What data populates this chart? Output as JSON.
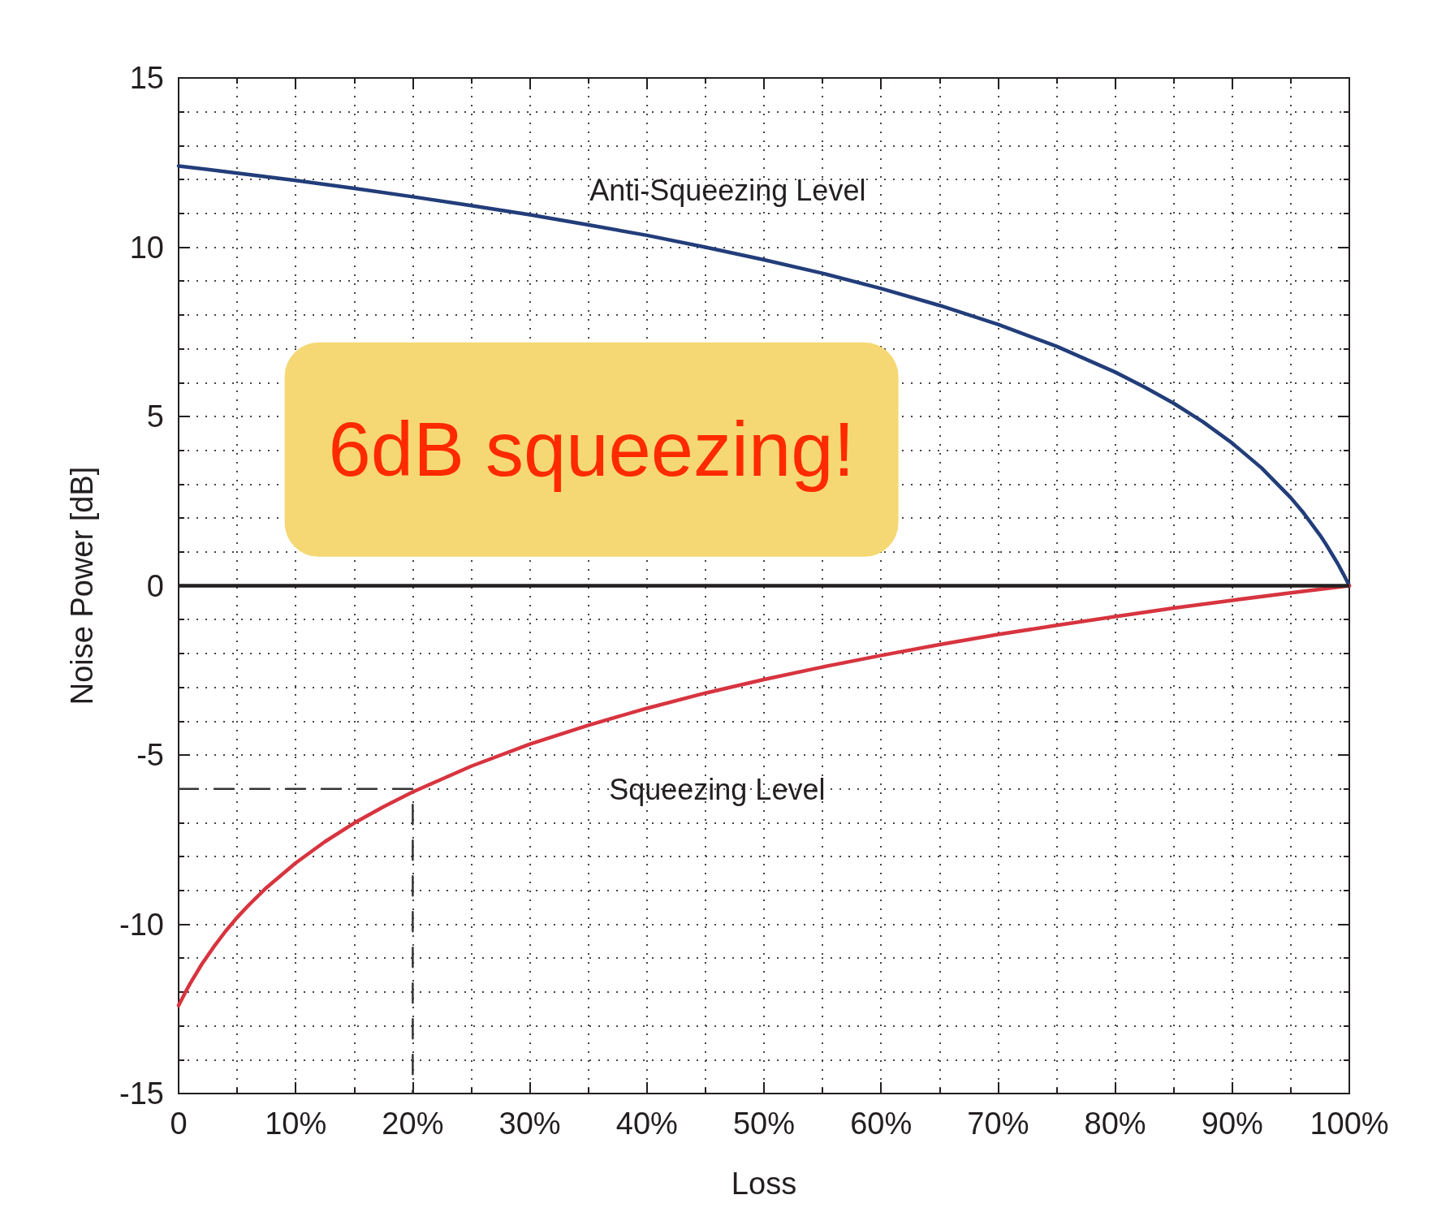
{
  "chart_data": {
    "type": "line",
    "xlabel": "Loss",
    "ylabel": "Noise Power [dB]",
    "annotations": [
      "6dB squeezing!"
    ],
    "xlim": [
      0,
      100
    ],
    "xticks": [
      0,
      {
        "value": 5,
        "label": null
      },
      {
        "value": 10,
        "label": "10%"
      },
      {
        "value": 15,
        "label": null
      },
      {
        "value": 20,
        "label": "20%"
      },
      {
        "value": 25,
        "label": null
      },
      {
        "value": 30,
        "label": "30%"
      },
      {
        "value": 35,
        "label": null
      },
      {
        "value": 40,
        "label": "40%"
      },
      {
        "value": 45,
        "label": null
      },
      {
        "value": 50,
        "label": "50%"
      },
      {
        "value": 55,
        "label": null
      },
      {
        "value": 60,
        "label": "60%"
      },
      {
        "value": 65,
        "label": null
      },
      {
        "value": 70,
        "label": "70%"
      },
      {
        "value": 75,
        "label": null
      },
      {
        "value": 80,
        "label": "80%"
      },
      {
        "value": 85,
        "label": null
      },
      {
        "value": 90,
        "label": "90%"
      },
      {
        "value": 95,
        "label": null
      },
      {
        "value": 100,
        "label": "100%"
      }
    ],
    "ylim": [
      -15,
      15
    ],
    "yticks": [
      -15,
      {
        "value": -14,
        "label": null
      },
      {
        "value": -13,
        "label": null
      },
      {
        "value": -12,
        "label": null
      },
      {
        "value": -11,
        "label": null
      },
      -10,
      {
        "value": -9,
        "label": null
      },
      {
        "value": -8,
        "label": null
      },
      {
        "value": -7,
        "label": null
      },
      {
        "value": -6,
        "label": null
      },
      -5,
      {
        "value": -4,
        "label": null
      },
      {
        "value": -3,
        "label": null
      },
      {
        "value": -2,
        "label": null
      },
      {
        "value": -1,
        "label": null
      },
      0,
      {
        "value": 1,
        "label": null
      },
      {
        "value": 2,
        "label": null
      },
      {
        "value": 3,
        "label": null
      },
      {
        "value": 4,
        "label": null
      },
      5,
      {
        "value": 6,
        "label": null
      },
      {
        "value": 7,
        "label": null
      },
      {
        "value": 8,
        "label": null
      },
      {
        "value": 9,
        "label": null
      },
      10,
      {
        "value": 11,
        "label": null
      },
      {
        "value": 12,
        "label": null
      },
      {
        "value": 13,
        "label": null
      },
      {
        "value": 14,
        "label": null
      },
      15
    ],
    "grid": true,
    "marker": "none",
    "line_style": "solid",
    "ref_lines": [
      {
        "axis": "y",
        "value": 0,
        "color": "#231f20"
      }
    ],
    "series": [
      {
        "name": "Anti-Squeezing Level",
        "color": "#223d7a",
        "x": [
          0,
          5,
          10,
          15,
          20,
          25,
          30,
          35,
          40,
          45,
          50,
          55,
          60,
          65,
          70,
          75,
          80,
          82.5,
          85,
          87.5,
          90,
          92.5,
          95,
          96,
          97.5,
          98,
          99,
          99.5,
          100
        ],
        "values": [
          12.4,
          12.19,
          11.97,
          11.74,
          11.49,
          11.23,
          10.96,
          10.66,
          10.35,
          10.0,
          9.63,
          9.23,
          8.78,
          8.28,
          7.72,
          7.07,
          6.31,
          5.87,
          5.39,
          4.84,
          4.21,
          3.48,
          2.6,
          2.19,
          1.49,
          1.23,
          0.66,
          0.34,
          0.0
        ]
      },
      {
        "name": "Squeezing Level",
        "color": "#d7343f",
        "x": [
          0,
          0.5,
          1,
          2,
          3,
          4,
          5,
          6,
          7.5,
          10,
          12.5,
          15,
          17.5,
          20,
          25,
          30,
          35,
          40,
          45,
          50,
          55,
          60,
          65,
          70,
          75,
          80,
          85,
          90,
          95,
          100
        ],
        "values": [
          -12.4,
          -12.06,
          -11.74,
          -11.17,
          -10.67,
          -10.21,
          -9.8,
          -9.43,
          -8.92,
          -8.19,
          -7.56,
          -7.01,
          -6.53,
          -6.09,
          -5.33,
          -4.68,
          -4.12,
          -3.62,
          -3.17,
          -2.77,
          -2.4,
          -2.06,
          -1.74,
          -1.44,
          -1.17,
          -0.91,
          -0.66,
          -0.43,
          -0.21,
          0.0
        ]
      },
      {
        "type": "line",
        "color": "#333333",
        "line_style": "dashed",
        "x": [
          0,
          20,
          20
        ],
        "values": [
          -6,
          -6,
          -15
        ]
      }
    ]
  }
}
